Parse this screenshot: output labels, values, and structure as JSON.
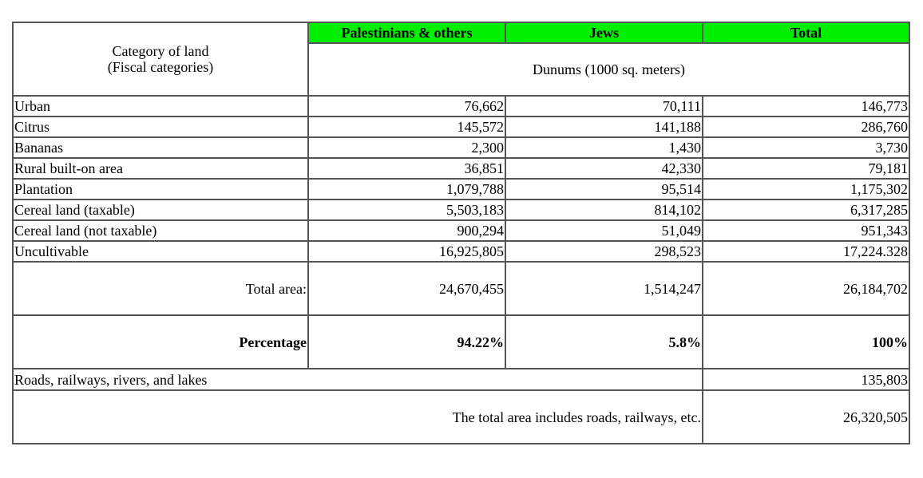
{
  "header": {
    "category_line1": "Category of land",
    "category_line2": "(Fiscal categories)",
    "columns": [
      "Palestinians & others",
      "Jews",
      "Total"
    ],
    "unit": "Dunums (1000 sq. meters)",
    "header_color": "#00ee00"
  },
  "rows": [
    {
      "label": "Urban",
      "values": [
        "76,662",
        "70,111",
        "146,773"
      ]
    },
    {
      "label": "Citrus",
      "values": [
        "145,572",
        "141,188",
        "286,760"
      ]
    },
    {
      "label": "Bananas",
      "values": [
        "2,300",
        "1,430",
        "3,730"
      ]
    },
    {
      "label": "Rural built-on area",
      "values": [
        "36,851",
        "42,330",
        "79,181"
      ]
    },
    {
      "label": "Plantation",
      "values": [
        "1,079,788",
        "95,514",
        "1,175,302"
      ]
    },
    {
      "label": "Cereal land (taxable)",
      "values": [
        "5,503,183",
        "814,102",
        "6,317,285"
      ]
    },
    {
      "label": "Cereal land (not taxable)",
      "values": [
        "900,294",
        "51,049",
        "951,343"
      ]
    },
    {
      "label": "Uncultivable",
      "values": [
        "16,925,805",
        "298,523",
        "17,224.328"
      ]
    }
  ],
  "total_area": {
    "label": "Total area:",
    "values": [
      "24,670,455",
      "1,514,247",
      "26,184,702"
    ]
  },
  "percentage": {
    "label": "Percentage",
    "values": [
      "94.22%",
      "5.8%",
      "100%"
    ]
  },
  "roads": {
    "label": "Roads, railways, rivers, and lakes",
    "value": "135,803"
  },
  "grand_total": {
    "label": "The total area includes roads, railways, etc.",
    "value": "26,320,505"
  }
}
